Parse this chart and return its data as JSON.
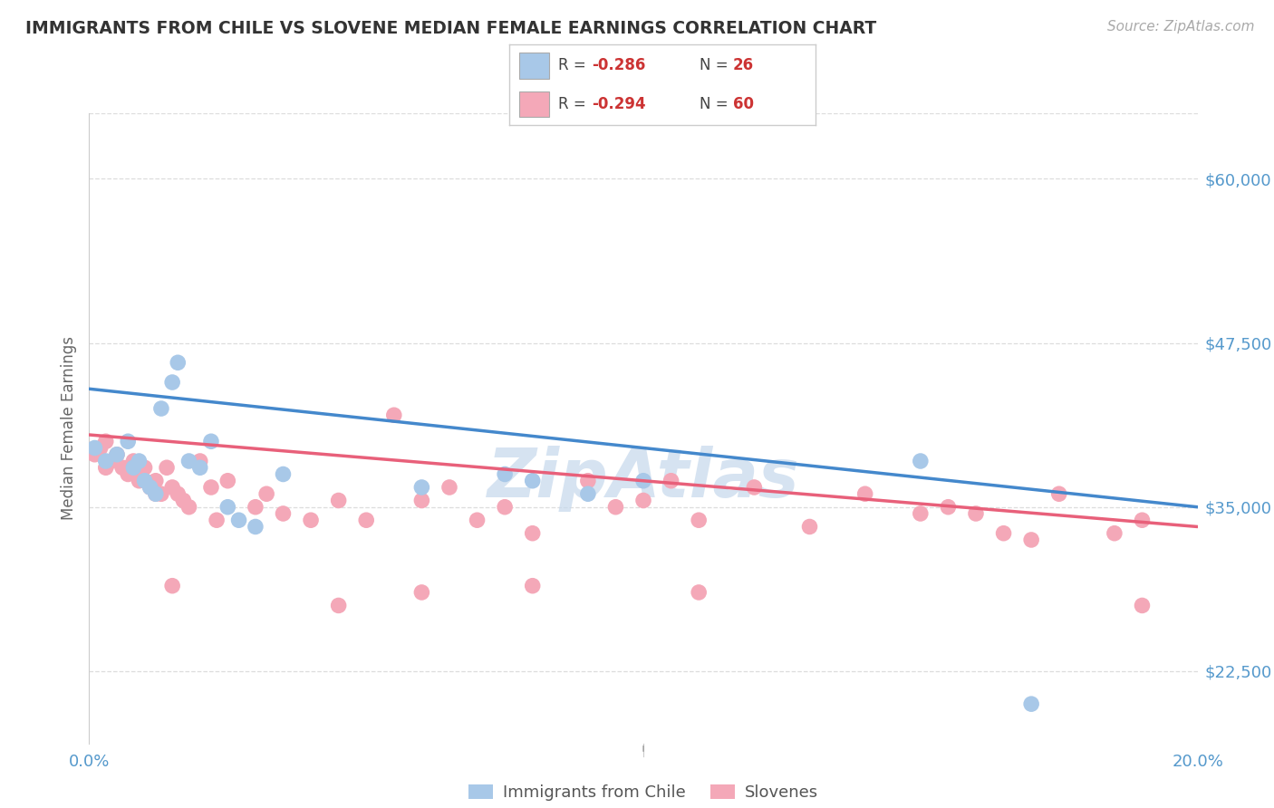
{
  "title": "IMMIGRANTS FROM CHILE VS SLOVENE MEDIAN FEMALE EARNINGS CORRELATION CHART",
  "source": "Source: ZipAtlas.com",
  "ylabel": "Median Female Earnings",
  "xlim": [
    0.0,
    0.2
  ],
  "ylim": [
    17000,
    65000
  ],
  "yticks": [
    22500,
    35000,
    47500,
    60000
  ],
  "yticklabels": [
    "$22,500",
    "$35,000",
    "$47,500",
    "$60,000"
  ],
  "color_chile": "#a8c8e8",
  "color_slovene": "#f4a8b8",
  "color_chile_line": "#4488cc",
  "color_slovene_line": "#e8607a",
  "color_grid": "#dddddd",
  "watermark": "ZipAtlas",
  "watermark_color": "#c5d8ec",
  "chile_r": "-0.286",
  "chile_n": "26",
  "slovene_r": "-0.294",
  "slovene_n": "60",
  "chile_line_x0": 0.0,
  "chile_line_y0": 44000,
  "chile_line_x1": 0.2,
  "chile_line_y1": 35000,
  "slovene_line_x0": 0.0,
  "slovene_line_y0": 40500,
  "slovene_line_x1": 0.2,
  "slovene_line_y1": 33500,
  "chile_x": [
    0.001,
    0.003,
    0.005,
    0.007,
    0.008,
    0.009,
    0.01,
    0.011,
    0.012,
    0.013,
    0.015,
    0.016,
    0.018,
    0.02,
    0.022,
    0.025,
    0.027,
    0.03,
    0.035,
    0.06,
    0.075,
    0.08,
    0.09,
    0.1,
    0.15,
    0.17
  ],
  "chile_y": [
    39500,
    38500,
    39000,
    40000,
    38000,
    38500,
    37000,
    36500,
    36000,
    42500,
    44500,
    46000,
    38500,
    38000,
    40000,
    35000,
    34000,
    33500,
    37500,
    36500,
    37500,
    37000,
    36000,
    37000,
    38500,
    20000
  ],
  "slovene_x": [
    0.001,
    0.002,
    0.003,
    0.003,
    0.004,
    0.005,
    0.006,
    0.007,
    0.007,
    0.008,
    0.009,
    0.01,
    0.01,
    0.011,
    0.012,
    0.012,
    0.013,
    0.014,
    0.015,
    0.016,
    0.017,
    0.018,
    0.02,
    0.022,
    0.023,
    0.025,
    0.03,
    0.032,
    0.035,
    0.04,
    0.045,
    0.05,
    0.055,
    0.06,
    0.065,
    0.07,
    0.075,
    0.08,
    0.09,
    0.095,
    0.1,
    0.105,
    0.11,
    0.12,
    0.13,
    0.14,
    0.15,
    0.155,
    0.16,
    0.165,
    0.17,
    0.175,
    0.185,
    0.19,
    0.015,
    0.06,
    0.045,
    0.08,
    0.11,
    0.19
  ],
  "slovene_y": [
    39000,
    39500,
    38000,
    40000,
    38500,
    39000,
    38000,
    37500,
    38000,
    38500,
    37000,
    37000,
    38000,
    36500,
    36000,
    37000,
    36000,
    38000,
    36500,
    36000,
    35500,
    35000,
    38500,
    36500,
    34000,
    37000,
    35000,
    36000,
    34500,
    34000,
    35500,
    34000,
    42000,
    35500,
    36500,
    34000,
    35000,
    33000,
    37000,
    35000,
    35500,
    37000,
    34000,
    36500,
    33500,
    36000,
    34500,
    35000,
    34500,
    33000,
    32500,
    36000,
    33000,
    34000,
    29000,
    28500,
    27500,
    29000,
    28500,
    27500
  ]
}
